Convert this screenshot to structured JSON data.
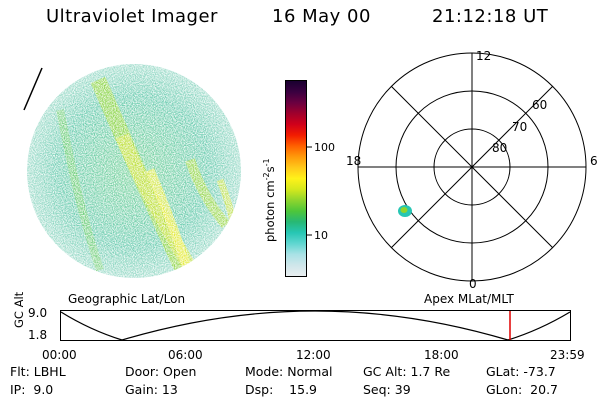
{
  "header": {
    "instrument": "Ultraviolet Imager",
    "date": "16 May 00",
    "time": "21:12:18 UT"
  },
  "colorbar": {
    "unit_label": "photon cm",
    "unit_exp1": "-2",
    "unit_mid": "s",
    "unit_exp2": "-1",
    "ticks": [
      "100",
      "10"
    ],
    "colors": [
      "#e9eef0",
      "#cfe6ea",
      "#a9e2e6",
      "#5fd6d0",
      "#27c6b4",
      "#27b874",
      "#4ec63a",
      "#8fd52d",
      "#d4e81d",
      "#fff21a",
      "#ffc81a",
      "#ff9a0a",
      "#ff6000",
      "#f21c00",
      "#d0001a",
      "#a0002c",
      "#6a0040",
      "#3a0040",
      "#1a0030"
    ]
  },
  "polar": {
    "mlt_labels": {
      "top": "12",
      "left": "18",
      "right": "6",
      "bottom": "0"
    },
    "lat_labels": [
      "60",
      "70",
      "80"
    ]
  },
  "timeline": {
    "left_title": "Geographic Lat/Lon",
    "right_title": "Apex MLat/MLT",
    "y_label": "GC Alt",
    "y_ticks": [
      "9.0",
      "1.8"
    ],
    "x_ticks": [
      "00:00",
      "06:00",
      "12:00",
      "18:00",
      "23:59"
    ],
    "marker_color": "#e00000"
  },
  "footer": {
    "row1": {
      "flt": "Flt: LBHL",
      "door": "Door: Open",
      "mode": "Mode: Normal",
      "gcalt": "GC Alt: 1.7 Re",
      "glat": "GLat: -73.7"
    },
    "row2": {
      "ip": "IP:  9.0",
      "gain": "Gain: 13",
      "dsp": "Dsp:    15.9",
      "seq": "Seq: 39",
      "glon": "GLon:  20.7"
    }
  }
}
